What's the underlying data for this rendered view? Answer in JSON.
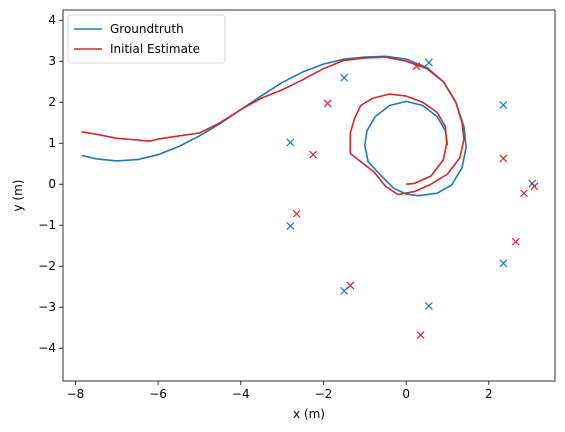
{
  "chart_data": {
    "type": "line",
    "xlabel": "x (m)",
    "ylabel": "y (m)",
    "xlim": [
      -8.3,
      3.6
    ],
    "ylim": [
      -4.8,
      4.25
    ],
    "xticks": [
      -8,
      -6,
      -4,
      -2,
      0,
      2
    ],
    "yticks": [
      -4,
      -3,
      -2,
      -1,
      0,
      1,
      2,
      3,
      4
    ],
    "grid": false,
    "legend_position": "top-left",
    "series": [
      {
        "name": "Groundtruth",
        "kind": "line",
        "color": "#1f77b4",
        "points": [
          [
            -7.85,
            0.7
          ],
          [
            -7.5,
            0.62
          ],
          [
            -7.0,
            0.57
          ],
          [
            -6.5,
            0.6
          ],
          [
            -6.0,
            0.72
          ],
          [
            -5.5,
            0.92
          ],
          [
            -5.0,
            1.18
          ],
          [
            -4.5,
            1.48
          ],
          [
            -4.0,
            1.82
          ],
          [
            -3.5,
            2.16
          ],
          [
            -3.0,
            2.48
          ],
          [
            -2.5,
            2.74
          ],
          [
            -2.0,
            2.93
          ],
          [
            -1.5,
            3.05
          ],
          [
            -1.0,
            3.1
          ],
          [
            -0.5,
            3.12
          ],
          [
            0.0,
            3.05
          ],
          [
            0.5,
            2.85
          ],
          [
            0.9,
            2.5
          ],
          [
            1.2,
            2.0
          ],
          [
            1.4,
            1.4
          ],
          [
            1.45,
            0.9
          ],
          [
            1.35,
            0.4
          ],
          [
            1.1,
            -0.02
          ],
          [
            0.75,
            -0.22
          ],
          [
            0.3,
            -0.28
          ],
          [
            0.0,
            -0.24
          ],
          [
            -0.3,
            -0.1
          ],
          [
            -0.6,
            0.2
          ],
          [
            -0.92,
            0.55
          ],
          [
            -1.0,
            0.95
          ],
          [
            -0.95,
            1.3
          ],
          [
            -0.75,
            1.65
          ],
          [
            -0.4,
            1.92
          ],
          [
            0.0,
            2.02
          ],
          [
            0.4,
            1.92
          ],
          [
            0.75,
            1.65
          ],
          [
            0.95,
            1.3
          ],
          [
            1.0,
            0.95
          ]
        ]
      },
      {
        "name": "Initial Estimate",
        "kind": "line",
        "color": "#d62728",
        "points": [
          [
            -7.85,
            1.28
          ],
          [
            -7.5,
            1.22
          ],
          [
            -7.0,
            1.12
          ],
          [
            -6.5,
            1.08
          ],
          [
            -6.2,
            1.05
          ],
          [
            -6.0,
            1.1
          ],
          [
            -5.5,
            1.18
          ],
          [
            -5.0,
            1.25
          ],
          [
            -4.5,
            1.5
          ],
          [
            -4.0,
            1.82
          ],
          [
            -3.5,
            2.1
          ],
          [
            -3.0,
            2.3
          ],
          [
            -2.5,
            2.55
          ],
          [
            -2.0,
            2.82
          ],
          [
            -1.5,
            3.02
          ],
          [
            -1.0,
            3.08
          ],
          [
            -0.5,
            3.1
          ],
          [
            0.0,
            3.0
          ],
          [
            0.5,
            2.82
          ],
          [
            0.9,
            2.5
          ],
          [
            1.2,
            2.0
          ],
          [
            1.35,
            1.5
          ],
          [
            1.4,
            1.1
          ],
          [
            1.3,
            0.65
          ],
          [
            1.0,
            0.25
          ],
          [
            0.6,
            0.0
          ],
          [
            0.2,
            -0.18
          ],
          [
            -0.2,
            -0.25
          ],
          [
            -0.5,
            -0.05
          ],
          [
            -0.78,
            0.3
          ],
          [
            -1.35,
            0.75
          ],
          [
            -1.35,
            1.25
          ],
          [
            -1.25,
            1.6
          ],
          [
            -1.1,
            1.92
          ],
          [
            -0.8,
            2.1
          ],
          [
            -0.4,
            2.2
          ],
          [
            0.0,
            2.15
          ],
          [
            0.4,
            2.0
          ],
          [
            0.75,
            1.75
          ],
          [
            0.95,
            1.4
          ],
          [
            0.98,
            1.0
          ],
          [
            0.9,
            0.6
          ],
          [
            0.6,
            0.2
          ],
          [
            0.2,
            0.02
          ],
          [
            0.0,
            0.0
          ]
        ]
      },
      {
        "name": "",
        "kind": "marker",
        "color": "#1f77b4",
        "points": [
          [
            -2.8,
            1.02
          ],
          [
            -1.5,
            2.6
          ],
          [
            0.55,
            2.97
          ],
          [
            2.35,
            1.93
          ],
          [
            3.05,
            0.02
          ],
          [
            2.35,
            -1.93
          ],
          [
            0.55,
            -2.97
          ],
          [
            -1.5,
            -2.6
          ],
          [
            -2.8,
            -1.02
          ]
        ]
      },
      {
        "name": "",
        "kind": "marker",
        "color": "#d62728",
        "points": [
          [
            -2.25,
            0.72
          ],
          [
            -1.9,
            1.97
          ],
          [
            0.25,
            2.88
          ],
          [
            2.35,
            0.63
          ],
          [
            3.1,
            -0.05
          ],
          [
            2.85,
            -0.22
          ],
          [
            2.65,
            -1.4
          ],
          [
            0.35,
            -3.68
          ],
          [
            -1.35,
            -2.47
          ],
          [
            -2.65,
            -0.72
          ]
        ]
      }
    ]
  }
}
